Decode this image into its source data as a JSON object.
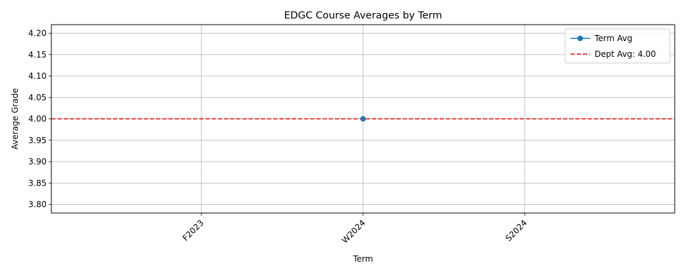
{
  "chart_data": {
    "type": "line",
    "title": "EDGC Course Averages by Term",
    "xlabel": "Term",
    "ylabel": "Average Grade",
    "categories": [
      "F2023",
      "W2024",
      "S2024"
    ],
    "series": [
      {
        "name": "Term Avg",
        "color": "#1f77b4",
        "marker": "circle",
        "points": [
          {
            "x": "W2024",
            "y": 4.0
          }
        ]
      }
    ],
    "reference_lines": [
      {
        "name": "Dept Avg: 4.00",
        "value": 4.0,
        "color": "#ff0000",
        "style": "dashed"
      }
    ],
    "ylim": [
      3.78,
      4.22
    ],
    "yticks": [
      "3.80",
      "3.85",
      "3.90",
      "3.95",
      "4.00",
      "4.05",
      "4.10",
      "4.15",
      "4.20"
    ],
    "grid": true,
    "legend_position": "top-right",
    "xtick_rotation": 45
  }
}
